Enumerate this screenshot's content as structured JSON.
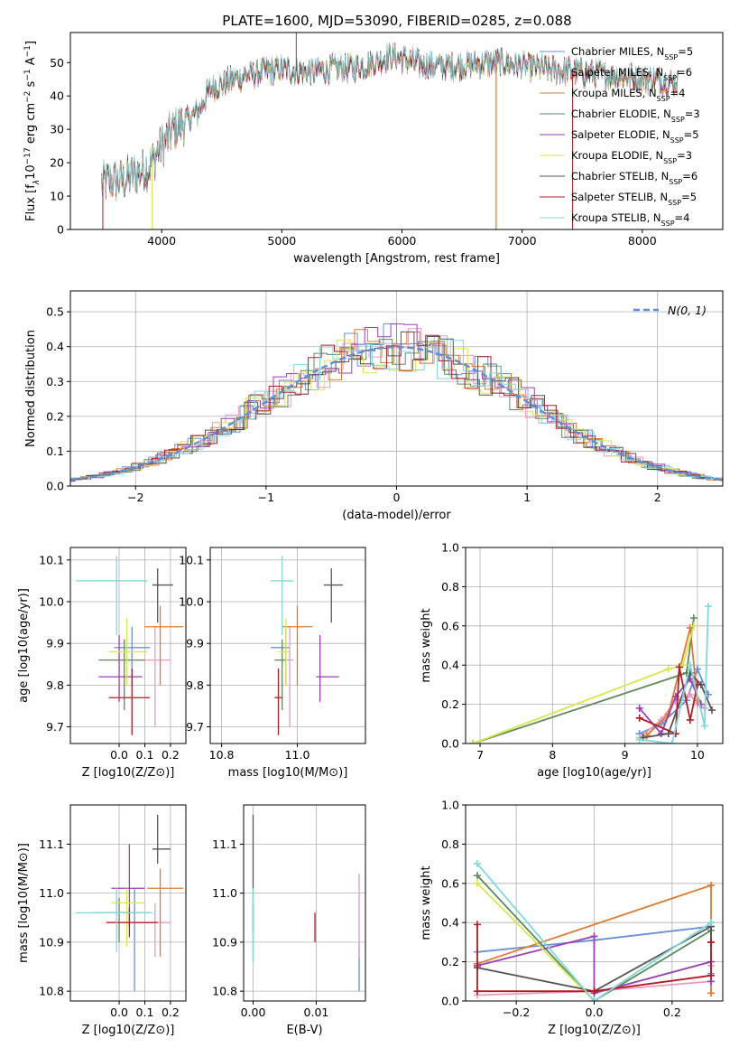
{
  "figure": {
    "title": "PLATE=1600, MJD=53090, FIBERID=0285, z=0.088"
  },
  "models": [
    {
      "name": "Chabrier MILES",
      "n": "5",
      "color": "#6a8fd6"
    },
    {
      "name": "Salpeter MILES",
      "n": "6",
      "color": "#e89bc2"
    },
    {
      "name": "Kroupa MILES",
      "n": "4",
      "color": "#e07b2e"
    },
    {
      "name": "Chabrier ELODIE",
      "n": "3",
      "color": "#5c8a5c"
    },
    {
      "name": "Salpeter ELODIE",
      "n": "5",
      "color": "#9b3fb5"
    },
    {
      "name": "Kroupa ELODIE",
      "n": "3",
      "color": "#d8e84a"
    },
    {
      "name": "Chabrier STELIB",
      "n": "6",
      "color": "#555555"
    },
    {
      "name": "Salpeter STELIB",
      "n": "5",
      "color": "#b01c26"
    },
    {
      "name": "Kroupa STELIB",
      "n": "4",
      "color": "#7fd9dc"
    }
  ],
  "chart_data": [
    {
      "id": "spectrum",
      "type": "line",
      "xlabel": "wavelength [Angstrom, rest frame]",
      "ylabel_parts": [
        "Flux [f",
        "λ",
        "10",
        "−17",
        " erg cm",
        "−2",
        " s",
        "−1",
        " A",
        "−1",
        "]"
      ],
      "xlim": [
        3240,
        8670
      ],
      "ylim": [
        0,
        59
      ],
      "xticks": [
        4000,
        5000,
        6000,
        7000,
        8000
      ],
      "yticks": [
        0,
        10,
        20,
        30,
        40,
        50
      ],
      "legend_position": "upper right",
      "continuum": [
        [
          3500,
          14
        ],
        [
          3700,
          15
        ],
        [
          3900,
          19
        ],
        [
          4000,
          25
        ],
        [
          4100,
          30
        ],
        [
          4300,
          35
        ],
        [
          4400,
          42
        ],
        [
          4600,
          45
        ],
        [
          4800,
          47
        ],
        [
          5000,
          48
        ],
        [
          5200,
          47
        ],
        [
          5400,
          48
        ],
        [
          5700,
          49
        ],
        [
          5900,
          52
        ],
        [
          6100,
          50
        ],
        [
          6300,
          49
        ],
        [
          6500,
          49
        ],
        [
          6800,
          50
        ],
        [
          7200,
          48
        ],
        [
          7500,
          47
        ],
        [
          7800,
          46
        ],
        [
          8100,
          45
        ],
        [
          8300,
          44
        ]
      ]
    },
    {
      "id": "residuals",
      "type": "histogram",
      "xlabel": "(data-model)/error",
      "ylabel": "Normed distribution",
      "xlim": [
        -2.5,
        2.5
      ],
      "ylim": [
        0,
        0.56
      ],
      "xticks": [
        -2,
        -1,
        0,
        1,
        2
      ],
      "yticks": [
        0.0,
        0.1,
        0.2,
        0.3,
        0.4,
        0.5
      ],
      "bin_width": 0.1,
      "reference": {
        "name": "N(0, 1)",
        "mean": 0,
        "sigma": 1
      },
      "legend_position": "upper right"
    },
    {
      "id": "age_vs_Z",
      "type": "scatter",
      "xlabel": "Z [log10(Z/Z⊙)]",
      "ylabel": "age [log10(age/yr)]",
      "xlim": [
        -0.19,
        0.26
      ],
      "ylim": [
        9.66,
        10.13
      ],
      "xticks": [
        0.0,
        0.1,
        0.2
      ],
      "yticks": [
        9.7,
        9.8,
        9.9,
        10.0,
        10.1
      ],
      "points": [
        {
          "model": 0,
          "x": 0.05,
          "y": 9.89,
          "xerr": [
            0.07,
            0.07
          ],
          "yerr": [
            0.09,
            0.05
          ]
        },
        {
          "model": 1,
          "x": 0.14,
          "y": 9.86,
          "xerr": [
            0.07,
            0.06
          ],
          "yerr": [
            0.16,
            0.08
          ]
        },
        {
          "model": 2,
          "x": 0.16,
          "y": 9.94,
          "xerr": [
            0.06,
            0.09
          ],
          "yerr": [
            0.14,
            0.05
          ]
        },
        {
          "model": 3,
          "x": 0.02,
          "y": 9.86,
          "xerr": [
            0.1,
            0.08
          ],
          "yerr": [
            0.12,
            0.05
          ]
        },
        {
          "model": 4,
          "x": 0.0,
          "y": 9.82,
          "xerr": [
            0.08,
            0.09
          ],
          "yerr": [
            0.06,
            0.1
          ]
        },
        {
          "model": 5,
          "x": 0.03,
          "y": 9.88,
          "xerr": [
            0.07,
            0.08
          ],
          "yerr": [
            0.08,
            0.08
          ]
        },
        {
          "model": 6,
          "x": 0.15,
          "y": 10.04,
          "xerr": [
            0.02,
            0.06
          ],
          "yerr": [
            0.09,
            0.04
          ]
        },
        {
          "model": 7,
          "x": 0.05,
          "y": 9.77,
          "xerr": [
            0.09,
            0.07
          ],
          "yerr": [
            0.09,
            0.07
          ]
        },
        {
          "model": 8,
          "x": -0.01,
          "y": 10.05,
          "xerr": [
            0.16,
            0.12
          ],
          "yerr": [
            0.13,
            0.06
          ]
        }
      ]
    },
    {
      "id": "age_vs_mass",
      "type": "scatter",
      "xlabel": "mass [log10(M/M⊙)]",
      "ylabel": "",
      "xlim": [
        10.77,
        11.18
      ],
      "ylim": [
        9.66,
        10.13
      ],
      "xticks": [
        10.8,
        11.0
      ],
      "yticks": [
        9.7,
        9.8,
        9.9,
        10.0,
        10.1
      ],
      "points": [
        {
          "model": 0,
          "x": 10.97,
          "y": 9.89,
          "xerr": [
            0.04,
            0.01
          ],
          "yerr": [
            0.09,
            0.05
          ]
        },
        {
          "model": 1,
          "x": 10.98,
          "y": 9.86,
          "xerr": [
            0.01,
            0.01
          ],
          "yerr": [
            0.16,
            0.08
          ]
        },
        {
          "model": 2,
          "x": 11.0,
          "y": 9.94,
          "xerr": [
            0.04,
            0.04
          ],
          "yerr": [
            0.14,
            0.05
          ]
        },
        {
          "model": 3,
          "x": 10.96,
          "y": 9.86,
          "xerr": [
            0.02,
            0.01
          ],
          "yerr": [
            0.12,
            0.05
          ]
        },
        {
          "model": 4,
          "x": 11.06,
          "y": 9.82,
          "xerr": [
            0.01,
            0.05
          ],
          "yerr": [
            0.06,
            0.1
          ]
        },
        {
          "model": 5,
          "x": 10.97,
          "y": 9.88,
          "xerr": [
            0.02,
            0.01
          ],
          "yerr": [
            0.08,
            0.08
          ]
        },
        {
          "model": 6,
          "x": 11.09,
          "y": 10.04,
          "xerr": [
            0.02,
            0.03
          ],
          "yerr": [
            0.09,
            0.04
          ]
        },
        {
          "model": 7,
          "x": 10.95,
          "y": 9.77,
          "xerr": [
            0.01,
            0.01
          ],
          "yerr": [
            0.09,
            0.07
          ]
        },
        {
          "model": 8,
          "x": 10.96,
          "y": 10.05,
          "xerr": [
            0.03,
            0.03
          ],
          "yerr": [
            0.13,
            0.06
          ]
        }
      ]
    },
    {
      "id": "massweight_vs_age",
      "type": "line",
      "xlabel": "age [log10(age/yr)]",
      "ylabel": "mass weight",
      "xlim": [
        6.8,
        10.35
      ],
      "ylim": [
        0,
        1
      ],
      "xticks": [
        7,
        8,
        9,
        10
      ],
      "yticks": [
        0.0,
        0.2,
        0.4,
        0.6,
        0.8,
        1.0
      ],
      "series": [
        {
          "model": 0,
          "x": [
            9.2,
            9.5,
            9.85,
            10.0,
            10.15
          ],
          "y": [
            0.05,
            0.1,
            0.22,
            0.38,
            0.25
          ]
        },
        {
          "model": 1,
          "x": [
            9.2,
            9.5,
            9.7,
            9.9,
            10.0,
            10.1
          ],
          "y": [
            0.03,
            0.12,
            0.22,
            0.25,
            0.2,
            0.18
          ]
        },
        {
          "model": 2,
          "x": [
            9.3,
            9.6,
            9.9,
            10.0
          ],
          "y": [
            0.04,
            0.15,
            0.59,
            0.22
          ]
        },
        {
          "model": 3,
          "x": [
            6.9,
            9.85,
            9.95
          ],
          "y": [
            0.0,
            0.36,
            0.64
          ]
        },
        {
          "model": 4,
          "x": [
            9.2,
            9.5,
            9.7,
            9.9,
            10.05
          ],
          "y": [
            0.18,
            0.05,
            0.24,
            0.33,
            0.2
          ]
        },
        {
          "model": 5,
          "x": [
            6.9,
            9.6,
            9.8,
            9.95
          ],
          "y": [
            0.0,
            0.38,
            0.4,
            0.6
          ]
        },
        {
          "model": 6,
          "x": [
            9.25,
            9.6,
            9.9,
            10.05,
            10.2
          ],
          "y": [
            0.03,
            0.05,
            0.36,
            0.3,
            0.17
          ]
        },
        {
          "model": 7,
          "x": [
            9.2,
            9.7,
            9.75,
            9.9,
            10.0
          ],
          "y": [
            0.13,
            0.05,
            0.39,
            0.12,
            0.3
          ]
        },
        {
          "model": 8,
          "x": [
            9.2,
            9.65,
            9.9,
            10.1,
            10.15
          ],
          "y": [
            0.02,
            0.0,
            0.4,
            0.09,
            0.7
          ]
        }
      ]
    },
    {
      "id": "mass_vs_Z",
      "type": "scatter",
      "xlabel": "Z [log10(Z/Z⊙)]",
      "ylabel": "mass [log10(M/M⊙)]",
      "xlim": [
        -0.19,
        0.26
      ],
      "ylim": [
        10.78,
        11.18
      ],
      "xticks": [
        0.0,
        0.1,
        0.2
      ],
      "yticks": [
        10.8,
        10.9,
        11.0,
        11.1
      ],
      "points": [
        {
          "model": 0,
          "x": 0.06,
          "y": 10.96,
          "xerr": [
            0.08,
            0.07
          ],
          "yerr": [
            0.16,
            0.05
          ]
        },
        {
          "model": 1,
          "x": 0.14,
          "y": 10.94,
          "xerr": [
            0.06,
            0.06
          ],
          "yerr": [
            0.07,
            0.04
          ]
        },
        {
          "model": 2,
          "x": 0.16,
          "y": 11.01,
          "xerr": [
            0.05,
            0.09
          ],
          "yerr": [
            0.14,
            0.04
          ]
        },
        {
          "model": 3,
          "x": 0.0,
          "y": 10.96,
          "xerr": [
            0.1,
            0.08
          ],
          "yerr": [
            0.06,
            0.03
          ]
        },
        {
          "model": 4,
          "x": 0.04,
          "y": 11.01,
          "xerr": [
            0.07,
            0.06
          ],
          "yerr": [
            0.08,
            0.09
          ]
        },
        {
          "model": 5,
          "x": 0.03,
          "y": 10.98,
          "xerr": [
            0.06,
            0.07
          ],
          "yerr": [
            0.09,
            0.03
          ]
        },
        {
          "model": 6,
          "x": 0.15,
          "y": 11.09,
          "xerr": [
            0.02,
            0.05
          ],
          "yerr": [
            0.03,
            0.07
          ]
        },
        {
          "model": 7,
          "x": 0.04,
          "y": 10.94,
          "xerr": [
            0.09,
            0.11
          ],
          "yerr": [
            0.03,
            0.03
          ]
        },
        {
          "model": 8,
          "x": -0.01,
          "y": 10.96,
          "xerr": [
            0.16,
            0.14
          ],
          "yerr": [
            0.08,
            0.05
          ]
        }
      ]
    },
    {
      "id": "mass_vs_EBV",
      "type": "scatter",
      "xlabel": "E(B-V)",
      "ylabel": "",
      "xlim": [
        -0.0015,
        0.0178
      ],
      "ylim": [
        10.78,
        11.18
      ],
      "xticks": [
        0.0,
        0.01
      ],
      "yticks": [
        10.8,
        10.9,
        11.0,
        11.1
      ],
      "points": [
        {
          "model": 0,
          "x": 0.0168,
          "y": 10.87,
          "yerr": [
            0.07,
            0.03
          ]
        },
        {
          "model": 1,
          "x": 0.0168,
          "y": 10.97,
          "yerr": [
            0.1,
            0.07
          ]
        },
        {
          "model": 3,
          "x": 0.0,
          "y": 10.93,
          "yerr": [
            0.07,
            0.05
          ]
        },
        {
          "model": 4,
          "x": 0.0,
          "y": 10.98,
          "yerr": [
            0.06,
            0.03
          ]
        },
        {
          "model": 6,
          "x": 0.0,
          "y": 11.08,
          "yerr": [
            0.07,
            0.08
          ]
        },
        {
          "model": 7,
          "x": 0.0098,
          "y": 10.93,
          "yerr": [
            0.03,
            0.03
          ]
        },
        {
          "model": 8,
          "x": 0.0,
          "y": 10.96,
          "yerr": [
            0.1,
            0.05
          ]
        }
      ]
    },
    {
      "id": "massweight_vs_Z",
      "type": "line",
      "xlabel": "Z [log10(Z/Z⊙)]",
      "ylabel": "mass weight",
      "xlim": [
        -0.33,
        0.33
      ],
      "ylim": [
        0,
        1
      ],
      "xticks": [
        -0.2,
        0.0,
        0.2
      ],
      "yticks": [
        0.0,
        0.2,
        0.4,
        0.6,
        0.8,
        1.0
      ],
      "series": [
        {
          "model": 0,
          "x": [
            -0.3,
            0.0,
            0.3,
            0.3
          ],
          "y": [
            0.25,
            0.31,
            0.38,
            0.14
          ]
        },
        {
          "model": 1,
          "x": [
            -0.3,
            0.0,
            0.3,
            0.3
          ],
          "y": [
            0.03,
            0.05,
            0.1,
            0.18
          ]
        },
        {
          "model": 2,
          "x": [
            -0.3,
            0.3,
            0.3
          ],
          "y": [
            0.19,
            0.59,
            0.04
          ]
        },
        {
          "model": 3,
          "x": [
            -0.3,
            0.0,
            0.3
          ],
          "y": [
            0.64,
            0.0,
            0.36
          ]
        },
        {
          "model": 4,
          "x": [
            -0.3,
            0.0,
            0.0,
            0.3,
            0.3
          ],
          "y": [
            0.18,
            0.33,
            0.04,
            0.2,
            0.1
          ]
        },
        {
          "model": 5,
          "x": [
            -0.3,
            0.0,
            0.3
          ],
          "y": [
            0.6,
            0.0,
            0.4
          ]
        },
        {
          "model": 6,
          "x": [
            -0.3,
            0.0,
            0.3,
            0.3
          ],
          "y": [
            0.17,
            0.05,
            0.38,
            0.3
          ]
        },
        {
          "model": 7,
          "x": [
            -0.3,
            -0.3,
            0.0,
            0.3,
            0.3
          ],
          "y": [
            0.39,
            0.05,
            0.05,
            0.13,
            0.3
          ]
        },
        {
          "model": 8,
          "x": [
            -0.3,
            0.0,
            0.3
          ],
          "y": [
            0.7,
            0.0,
            0.4
          ]
        }
      ]
    }
  ]
}
